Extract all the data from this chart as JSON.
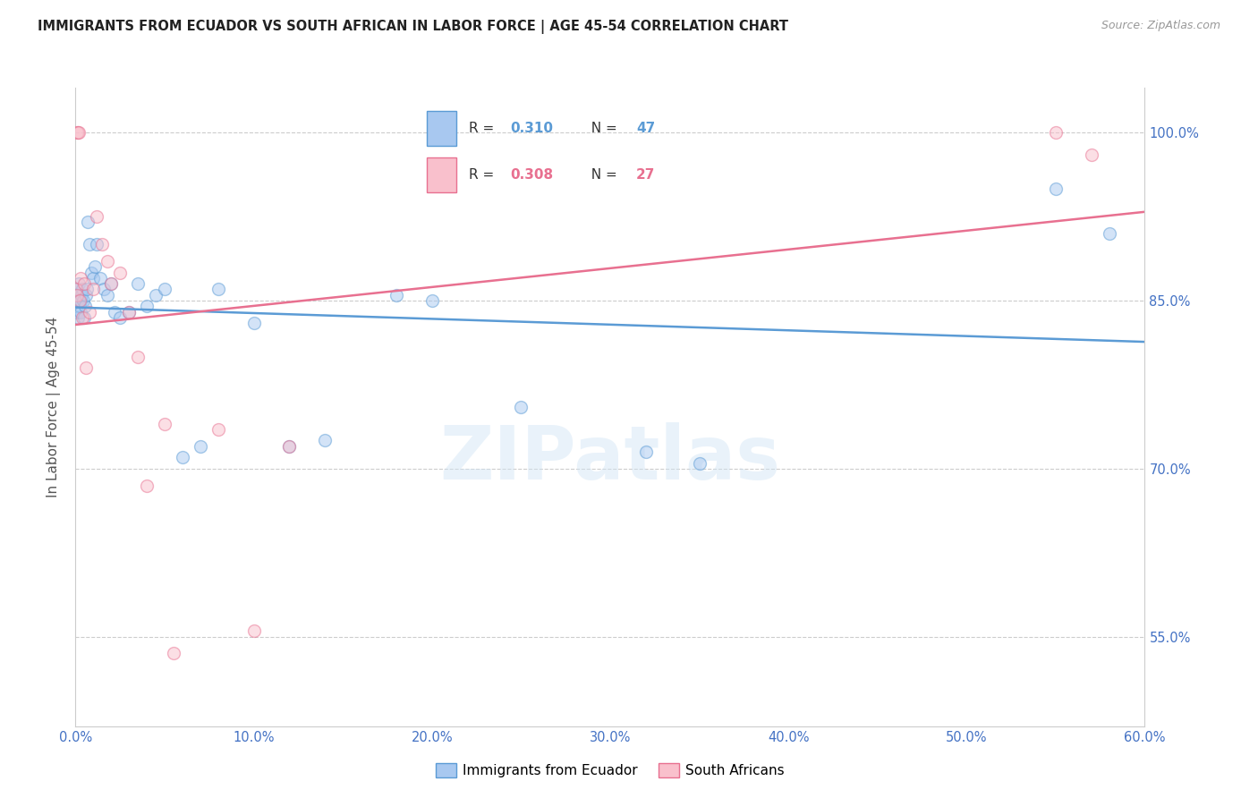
{
  "title": "IMMIGRANTS FROM ECUADOR VS SOUTH AFRICAN IN LABOR FORCE | AGE 45-54 CORRELATION CHART",
  "source": "Source: ZipAtlas.com",
  "ylabel": "In Labor Force | Age 45-54",
  "x_tick_labels": [
    "0.0%",
    "10.0%",
    "20.0%",
    "30.0%",
    "40.0%",
    "50.0%",
    "60.0%"
  ],
  "x_tick_vals": [
    0.0,
    10.0,
    20.0,
    30.0,
    40.0,
    50.0,
    60.0
  ],
  "y_tick_labels": [
    "55.0%",
    "70.0%",
    "85.0%",
    "100.0%"
  ],
  "y_tick_vals": [
    55.0,
    70.0,
    85.0,
    100.0
  ],
  "xlim": [
    0.0,
    60.0
  ],
  "ylim": [
    47.0,
    104.0
  ],
  "blue_fill": "#A8C8F0",
  "blue_edge": "#5B9BD5",
  "pink_fill": "#F9C0CC",
  "pink_edge": "#E87090",
  "blue_line_color": "#5B9BD5",
  "pink_line_color": "#E87090",
  "legend_blue_R": "0.310",
  "legend_blue_N": "47",
  "legend_pink_R": "0.308",
  "legend_pink_N": "27",
  "bottom_legend_blue": "Immigrants from Ecuador",
  "bottom_legend_pink": "South Africans",
  "watermark": "ZIPatlas",
  "ecuador_x": [
    0.05,
    0.08,
    0.1,
    0.12,
    0.15,
    0.18,
    0.2,
    0.25,
    0.28,
    0.3,
    0.35,
    0.4,
    0.45,
    0.5,
    0.55,
    0.6,
    0.65,
    0.7,
    0.8,
    0.9,
    1.0,
    1.1,
    1.2,
    1.4,
    1.6,
    1.8,
    2.0,
    2.2,
    2.5,
    3.0,
    3.5,
    4.0,
    4.5,
    5.0,
    6.0,
    7.0,
    8.0,
    10.0,
    12.0,
    14.0,
    18.0,
    20.0,
    25.0,
    32.0,
    35.0,
    55.0,
    58.0
  ],
  "ecuador_y": [
    85.5,
    84.0,
    86.0,
    83.5,
    85.0,
    86.5,
    85.0,
    84.5,
    85.0,
    84.0,
    85.5,
    86.0,
    85.0,
    83.5,
    84.5,
    85.5,
    86.0,
    92.0,
    90.0,
    87.5,
    87.0,
    88.0,
    90.0,
    87.0,
    86.0,
    85.5,
    86.5,
    84.0,
    83.5,
    84.0,
    86.5,
    84.5,
    85.5,
    86.0,
    71.0,
    72.0,
    86.0,
    83.0,
    72.0,
    72.5,
    85.5,
    85.0,
    75.5,
    71.5,
    70.5,
    95.0,
    91.0
  ],
  "sa_x": [
    0.05,
    0.08,
    0.1,
    0.15,
    0.2,
    0.25,
    0.3,
    0.4,
    0.5,
    0.6,
    0.8,
    1.0,
    1.2,
    1.5,
    1.8,
    2.0,
    2.5,
    3.0,
    3.5,
    4.0,
    5.0,
    5.5,
    8.0,
    10.0,
    12.0,
    55.0,
    57.0
  ],
  "sa_y": [
    86.0,
    85.5,
    100.0,
    100.0,
    100.0,
    85.0,
    87.0,
    83.5,
    86.5,
    79.0,
    84.0,
    86.0,
    92.5,
    90.0,
    88.5,
    86.5,
    87.5,
    84.0,
    80.0,
    68.5,
    74.0,
    53.5,
    73.5,
    55.5,
    72.0,
    100.0,
    98.0
  ],
  "background_color": "#FFFFFF",
  "grid_color": "#CCCCCC",
  "title_color": "#222222",
  "axis_tick_color": "#4472C4",
  "marker_size": 100,
  "marker_alpha": 0.5
}
